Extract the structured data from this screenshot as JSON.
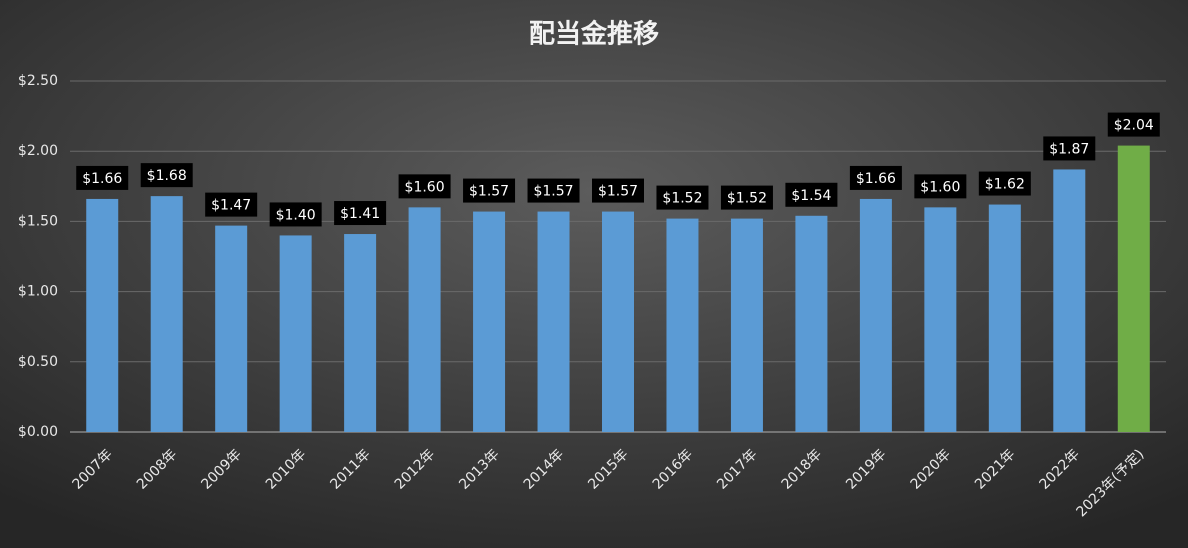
{
  "chart_data": {
    "type": "bar",
    "title": "配当金推移",
    "categories": [
      "2007年",
      "2008年",
      "2009年",
      "2010年",
      "2011年",
      "2012年",
      "2013年",
      "2014年",
      "2015年",
      "2016年",
      "2017年",
      "2018年",
      "2019年",
      "2020年",
      "2021年",
      "2022年",
      "2023年(予定)"
    ],
    "values": [
      1.66,
      1.68,
      1.47,
      1.4,
      1.41,
      1.6,
      1.57,
      1.57,
      1.57,
      1.52,
      1.52,
      1.54,
      1.66,
      1.6,
      1.62,
      1.87,
      2.04
    ],
    "value_labels": [
      "$1.66",
      "$1.68",
      "$1.47",
      "$1.40",
      "$1.41",
      "$1.60",
      "$1.57",
      "$1.57",
      "$1.57",
      "$1.52",
      "$1.52",
      "$1.54",
      "$1.66",
      "$1.60",
      "$1.62",
      "$1.87",
      "$2.04"
    ],
    "colors": [
      "#5b9bd5",
      "#5b9bd5",
      "#5b9bd5",
      "#5b9bd5",
      "#5b9bd5",
      "#5b9bd5",
      "#5b9bd5",
      "#5b9bd5",
      "#5b9bd5",
      "#5b9bd5",
      "#5b9bd5",
      "#5b9bd5",
      "#5b9bd5",
      "#5b9bd5",
      "#5b9bd5",
      "#5b9bd5",
      "#70ad47"
    ],
    "ylim": [
      0,
      2.5
    ],
    "yticks": [
      {
        "value": 0,
        "label": "$0.00"
      },
      {
        "value": 0.5,
        "label": "$0.50"
      },
      {
        "value": 1,
        "label": "$1.00"
      },
      {
        "value": 1.5,
        "label": "$1.50"
      },
      {
        "value": 2,
        "label": "$2.00"
      },
      {
        "value": 2.5,
        "label": "$2.50"
      }
    ],
    "grid": true
  }
}
